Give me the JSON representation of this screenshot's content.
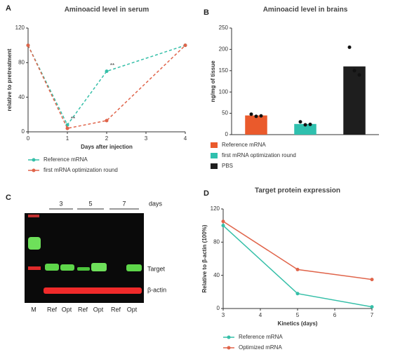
{
  "chart_data": [
    {
      "type": "line",
      "label": "A",
      "title": "Aminoacid level in serum",
      "x_label": "Days after injection",
      "y_label": "relative to pretreatment",
      "x": [
        0,
        1,
        2,
        4
      ],
      "xlim": [
        0,
        4
      ],
      "xticks": [
        0,
        1,
        2,
        3,
        4
      ],
      "ylim": [
        0,
        120
      ],
      "yticks": [
        0,
        40,
        80,
        120
      ],
      "series": [
        {
          "name": "Reference mRNA",
          "color": "#35bfa8",
          "values": [
            100,
            8,
            70,
            100
          ]
        },
        {
          "name": "first mRNA optimization round",
          "color": "#e0644a",
          "values": [
            100,
            4,
            13,
            100
          ]
        }
      ],
      "annotations": [
        {
          "text": "**",
          "x": 1
        },
        {
          "text": "**",
          "x": 2
        }
      ]
    },
    {
      "type": "bar",
      "label": "B",
      "title": "Aminoacid level in brains",
      "y_label": "ng/mg of tissue",
      "ylim": [
        0,
        250
      ],
      "yticks": [
        0,
        50,
        100,
        150,
        200,
        250
      ],
      "series": [
        {
          "name": "Reference mRNA",
          "color": "#ea5a2c",
          "values": [
            45
          ],
          "points": [
            48,
            43,
            44
          ]
        },
        {
          "name": "first mRNA optimization round",
          "color": "#2fc0ae",
          "values": [
            25
          ],
          "points": [
            30,
            23,
            24
          ]
        },
        {
          "name": "PBS",
          "color": "#1e1e1e",
          "values": [
            160
          ],
          "points": [
            205,
            150,
            140
          ]
        }
      ]
    },
    {
      "type": "line",
      "label": "D",
      "title": "Target protein expression",
      "x_label": "Kinetics (days)",
      "y_label": "Relative to β-actin (100%)",
      "x": [
        3,
        5,
        7
      ],
      "xlim": [
        3,
        7
      ],
      "xticks": [
        3,
        4,
        5,
        6,
        7
      ],
      "ylim": [
        0,
        120
      ],
      "yticks": [
        0,
        40,
        80,
        120
      ],
      "series": [
        {
          "name": "Reference mRNA",
          "color": "#35bfa8",
          "values": [
            100,
            18,
            2
          ]
        },
        {
          "name": "Optimized mRNA",
          "color": "#e0644a",
          "values": [
            105,
            47,
            35
          ]
        }
      ]
    }
  ],
  "blot": {
    "label": "C",
    "days": [
      "3",
      "5",
      "7"
    ],
    "days_label": "days",
    "bands": [
      "Target",
      "β-actin"
    ],
    "lanes": [
      "M",
      "Ref",
      "Opt",
      "Ref",
      "Opt",
      "Ref",
      "Opt"
    ]
  }
}
